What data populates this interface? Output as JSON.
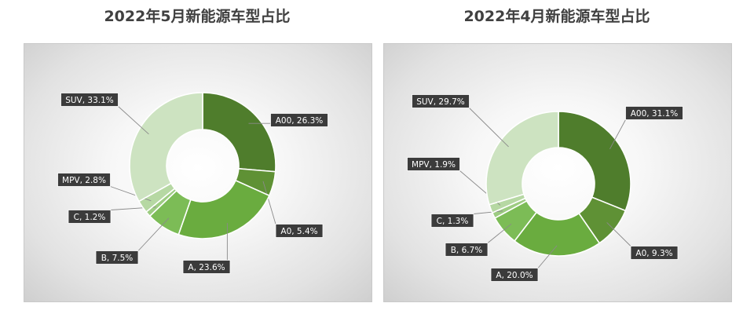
{
  "chart_data": [
    {
      "type": "pie",
      "donut": true,
      "title": "2022年5月新能源车型占比",
      "categories": [
        "A00",
        "A0",
        "A",
        "B",
        "C",
        "MPV",
        "SUV"
      ],
      "values": [
        26.3,
        5.4,
        23.6,
        7.5,
        1.2,
        2.8,
        33.1
      ],
      "data_labels": [
        "A00, 26.3%",
        "A0, 5.4%",
        "A, 23.6%",
        "B, 7.5%",
        "C, 1.2%",
        "MPV, 2.8%",
        "SUV, 33.1%"
      ],
      "legend": "none"
    },
    {
      "type": "pie",
      "donut": true,
      "title": "2022年4月新能源车型占比",
      "categories": [
        "A00",
        "A0",
        "A",
        "B",
        "C",
        "MPV",
        "SUV"
      ],
      "values": [
        31.1,
        9.3,
        20.0,
        6.7,
        1.3,
        1.9,
        29.7
      ],
      "data_labels": [
        "A00, 31.1%",
        "A0, 9.3%",
        "A, 20.0%",
        "B, 6.7%",
        "C, 1.3%",
        "MPV, 1.9%",
        "SUV, 29.7%"
      ],
      "legend": "none"
    }
  ],
  "colors": {
    "slices": [
      "#4f7d2c",
      "#5f9135",
      "#6aac3f",
      "#7cbc56",
      "#9dcc82",
      "#b6d8a3",
      "#cde3c1"
    ],
    "label_bg": "#3b3b3b",
    "leader_line": "#8a8a8a"
  }
}
